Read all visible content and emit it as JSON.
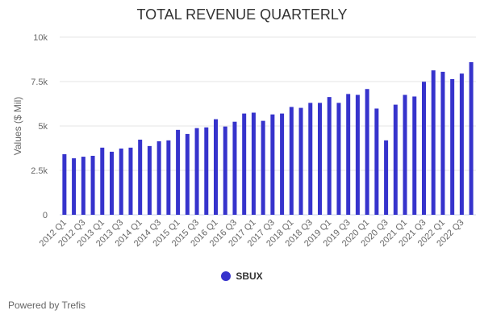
{
  "chart_data": {
    "type": "bar",
    "title": "TOTAL REVENUE QUARTERLY",
    "ylabel": "Values ($ Mil)",
    "xlabel": "",
    "ylim": [
      0,
      10000
    ],
    "yticks": [
      0,
      2500,
      5000,
      7500,
      10000
    ],
    "ytick_labels": [
      "0",
      "2.5k",
      "5k",
      "7.5k",
      "10k"
    ],
    "grid": true,
    "legend_position": "bottom",
    "color": "#3633cc",
    "categories": [
      "2012 Q1",
      "2012 Q2",
      "2012 Q3",
      "2012 Q4",
      "2013 Q1",
      "2013 Q2",
      "2013 Q3",
      "2013 Q4",
      "2014 Q1",
      "2014 Q2",
      "2014 Q3",
      "2014 Q4",
      "2015 Q1",
      "2015 Q2",
      "2015 Q3",
      "2015 Q4",
      "2016 Q1",
      "2016 Q2",
      "2016 Q3",
      "2016 Q4",
      "2017 Q1",
      "2017 Q2",
      "2017 Q3",
      "2017 Q4",
      "2018 Q1",
      "2018 Q2",
      "2018 Q3",
      "2018 Q4",
      "2019 Q1",
      "2019 Q2",
      "2019 Q3",
      "2019 Q4",
      "2020 Q1",
      "2020 Q2",
      "2020 Q3",
      "2020 Q4",
      "2021 Q1",
      "2021 Q2",
      "2021 Q3",
      "2021 Q4",
      "2022 Q1",
      "2022 Q2",
      "2022 Q3",
      "2022 Q4"
    ],
    "series": [
      {
        "name": "SBUX",
        "values": [
          3410,
          3180,
          3270,
          3320,
          3780,
          3550,
          3730,
          3780,
          4230,
          3870,
          4140,
          4190,
          4780,
          4550,
          4880,
          4920,
          5380,
          4970,
          5240,
          5700,
          5750,
          5290,
          5650,
          5700,
          6070,
          6020,
          6300,
          6300,
          6630,
          6300,
          6800,
          6750,
          7080,
          5980,
          4190,
          6200,
          6750,
          6660,
          7490,
          8130,
          8050,
          7640,
          7950,
          8590
        ]
      }
    ]
  },
  "footer": "Powered by Trefis"
}
